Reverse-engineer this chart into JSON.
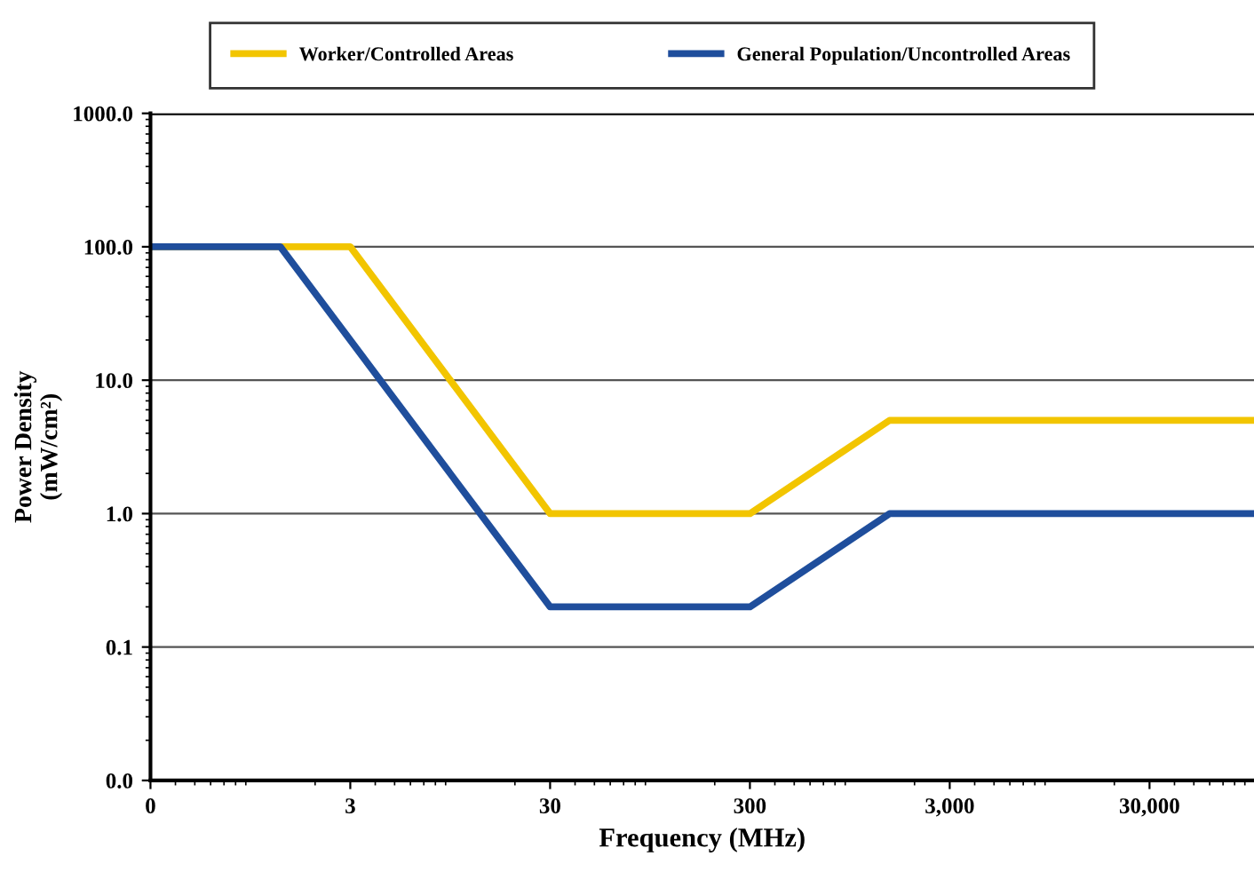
{
  "chart_data": {
    "type": "line",
    "xlabel": "Frequency (MHz)",
    "ylabel": "Power Density\n(mW/cm²)",
    "log": "xy",
    "series": [
      {
        "name": "Worker/Controlled Areas",
        "color": "#f2c500",
        "x": [
          0.3,
          3,
          30,
          300,
          1500,
          100000
        ],
        "values": [
          100,
          100,
          1,
          1,
          5,
          5
        ]
      },
      {
        "name": "General Population/Uncontrolled Areas",
        "color": "#1f4e9c",
        "x": [
          0.3,
          1.34,
          30,
          300,
          1500,
          100000
        ],
        "values": [
          100,
          100,
          0.2,
          0.2,
          1,
          1
        ]
      }
    ],
    "xlim": [
      0.3,
      100000
    ],
    "xticks": [
      {
        "value": 0.3,
        "label": "0"
      },
      3,
      30,
      300,
      {
        "value": 3000,
        "label": "3,000"
      },
      {
        "value": 30000,
        "label": "30,000"
      }
    ],
    "ylim": [
      0.01,
      1000
    ],
    "yticks": [
      {
        "value": 0.01,
        "label": "0.0"
      },
      {
        "value": 0.1,
        "label": "0.1"
      },
      {
        "value": 1,
        "label": "1.0"
      },
      {
        "value": 10,
        "label": "10.0"
      },
      {
        "value": 100,
        "label": "100.0"
      },
      {
        "value": 1000,
        "label": "1000.0"
      }
    ],
    "grid": "y",
    "legend": "top",
    "marker": "none",
    "line_style": "solid"
  }
}
